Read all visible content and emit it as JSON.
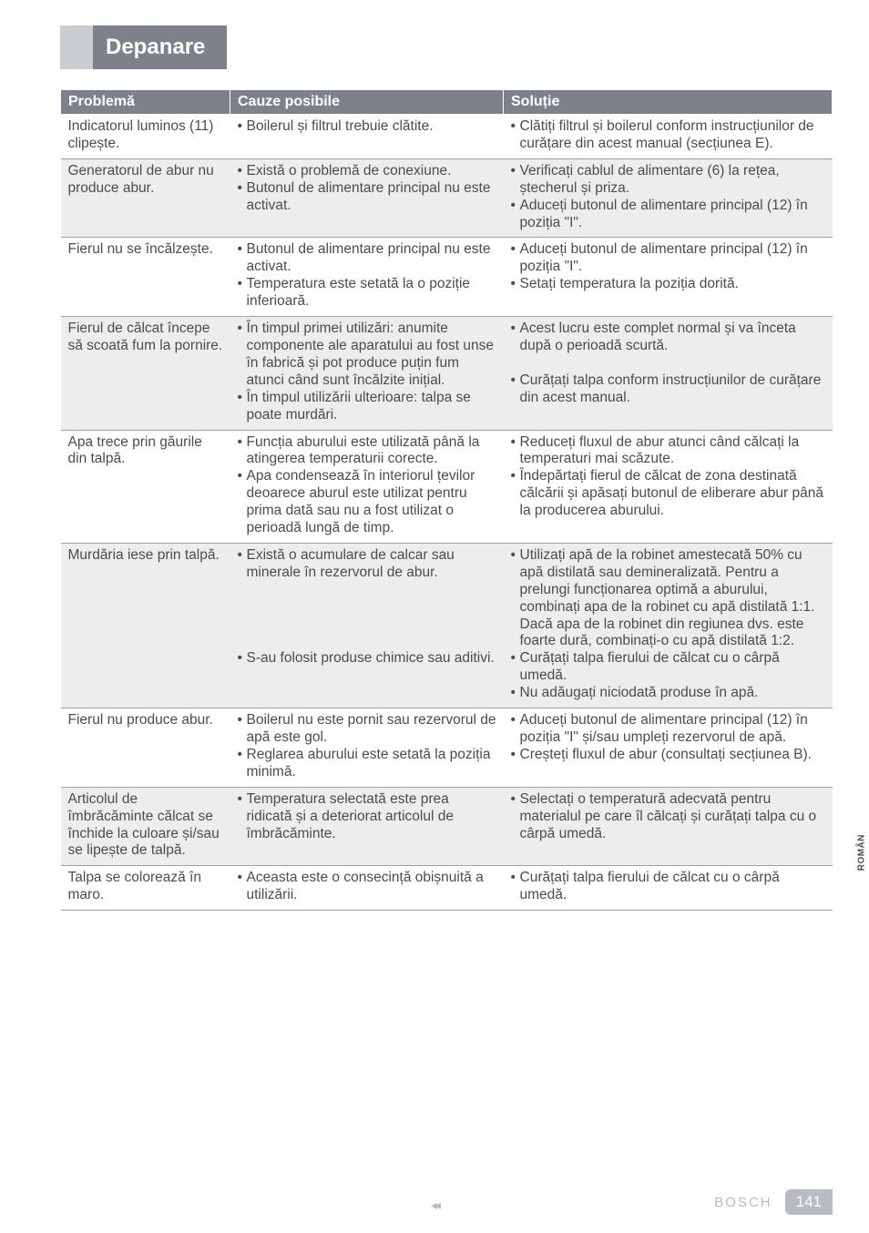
{
  "title": "Depanare",
  "headers": {
    "problem": "Problemă",
    "cause": "Cauze posibile",
    "solution": "Soluție"
  },
  "side_label": "ROMÂN",
  "footer": {
    "brand": "BOSCH",
    "page": "141",
    "arrows": "◂◂"
  },
  "rows": [
    {
      "alt": false,
      "problem": "Indicatorul luminos (11) clipește.",
      "causes": [
        "Boilerul și filtrul trebuie clătite."
      ],
      "solutions": [
        "Clătiți filtrul și boilerul conform instrucțiunilor de curățare din acest manual (secțiunea E)."
      ]
    },
    {
      "alt": true,
      "problem": "Generatorul de abur nu produce abur.",
      "causes": [
        "Există o problemă de conexiune.",
        "Butonul de alimentare principal nu este activat."
      ],
      "solutions": [
        "Verificați cablul de alimentare (6) la rețea, ștecherul și priza.",
        "Aduceți butonul de alimentare principal (12) în poziția \"I\"."
      ]
    },
    {
      "alt": false,
      "problem": "Fierul nu se încălzește.",
      "causes": [
        "Butonul de alimentare principal nu este activat.",
        "Temperatura este setată la o poziție inferioară."
      ],
      "solutions": [
        "Aduceți butonul de alimentare principal (12) în poziția \"I\".",
        "Setați temperatura la poziția dorită."
      ]
    },
    {
      "alt": true,
      "problem": "Fierul de călcat începe să scoată fum la pornire.",
      "causes": [
        "În timpul primei utilizări: anumite componente ale aparatului au fost unse în fabrică și pot produce puțin fum atunci când sunt încălzite inițial.",
        "În timpul utilizării ulterioare: talpa se poate murdări."
      ],
      "solutions": [
        "Acest lucru este complet normal și va înceta după o perioadă scurtă.\n \n ",
        "Curățați talpa conform instrucțiunilor de curățare din acest manual."
      ]
    },
    {
      "alt": false,
      "problem": "Apa trece prin găurile din talpă.",
      "causes": [
        "Funcția aburului este utilizată până la atingerea temperaturii corecte.",
        "Apa condensează în interiorul țevilor deoarece aburul este utilizat pentru prima dată sau nu a fost utilizat o perioadă lungă de timp."
      ],
      "solutions": [
        "Reduceți fluxul de abur atunci când călcați la temperaturi mai scăzute.\n ",
        "Îndepărtați fierul de călcat de zona destinată călcării și apăsați butonul de eliberare abur până la producerea aburului."
      ]
    },
    {
      "alt": true,
      "problem": "Murdăria iese prin talpă.",
      "causes": [
        "Există o acumulare de calcar sau minerale în rezervorul de abur.\n \n \n \n \n ",
        "S-au folosit produse chimice sau aditivi."
      ],
      "solutions": [
        "Utilizați apă de la robinet amestecată 50% cu apă distilată sau demineralizată. Pentru a prelungi funcționarea optimă a aburului, combinați apa de la robinet cu apă distilată 1:1. Dacă apa de la robinet din regiunea dvs. este foarte dură, combinați-o cu apă distilată 1:2.",
        "Curățați talpa fierului de călcat cu o cârpă umedă.",
        "Nu adăugați niciodată produse în apă."
      ]
    },
    {
      "alt": false,
      "problem": "Fierul nu produce abur.",
      "causes": [
        "Boilerul nu este pornit sau rezervorul de apă este gol.\n ",
        "Reglarea aburului este setată la poziția minimă."
      ],
      "solutions": [
        "Aduceți butonul de alimentare principal (12) în poziția \"I\" și/sau umpleți rezervorul de apă.",
        "Creșteți fluxul de abur (consultați secțiunea B)."
      ]
    },
    {
      "alt": true,
      "problem": "Articolul de îmbrăcăminte călcat se închide la culoare și/sau se lipește de talpă.",
      "causes": [
        "Temperatura selectată este prea ridicată și a deteriorat articolul de îmbrăcăminte."
      ],
      "solutions": [
        "Selectați o temperatură adecvată pentru materialul pe care îl călcați și curățați talpa cu o cârpă umedă."
      ]
    },
    {
      "alt": false,
      "problem": "Talpa se colorează în maro.",
      "causes": [
        "Aceasta este o consecință obișnuită a utilizării."
      ],
      "solutions": [
        "Curățați talpa fierului de călcat cu o cârpă umedă."
      ]
    }
  ]
}
